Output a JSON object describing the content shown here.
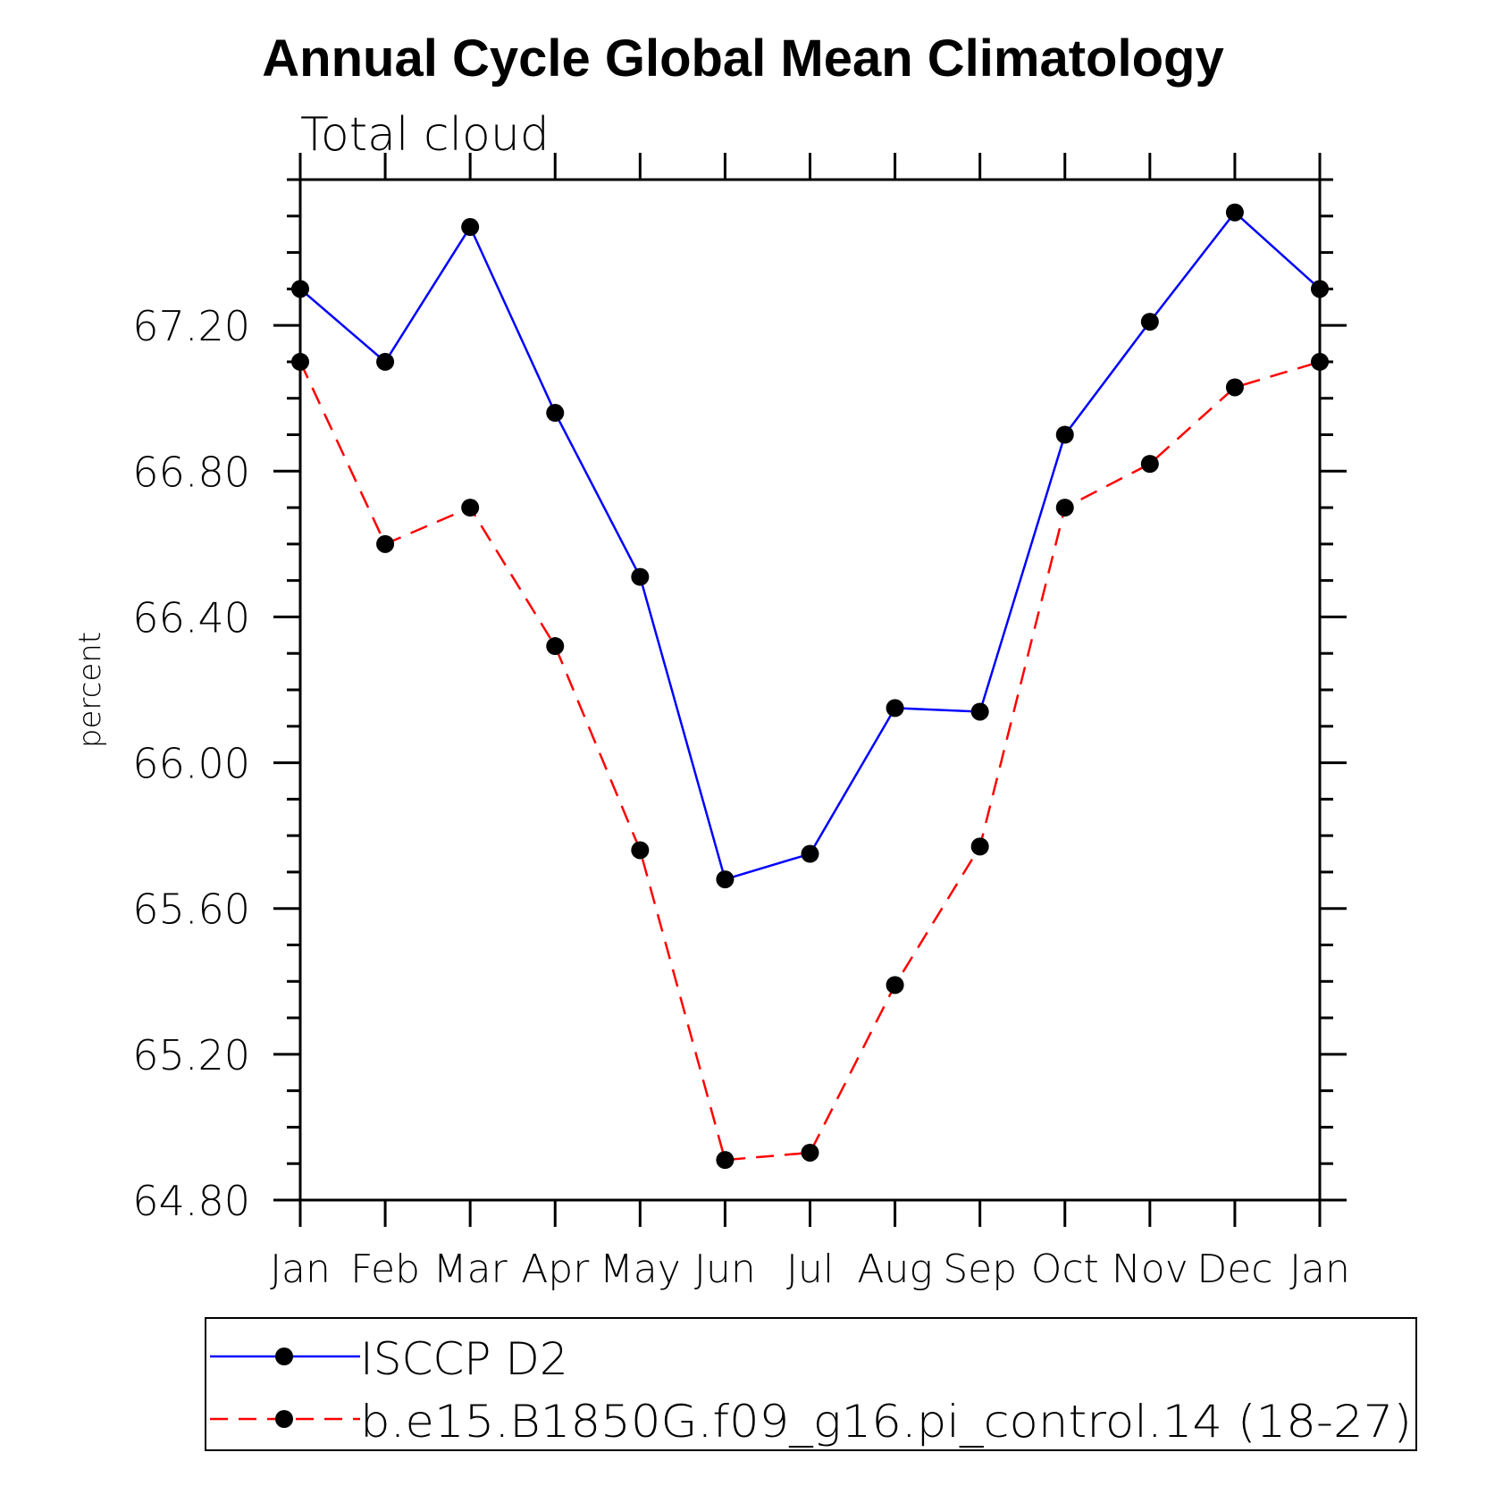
{
  "chart_data": {
    "type": "line",
    "title": "Annual Cycle Global Mean Climatology",
    "subtitle": "Total cloud",
    "xlabel": "",
    "ylabel": "percent",
    "categories": [
      "Jan",
      "Feb",
      "Mar",
      "Apr",
      "May",
      "Jun",
      "Jul",
      "Aug",
      "Sep",
      "Oct",
      "Nov",
      "Dec",
      "Jan"
    ],
    "ylim": [
      64.8,
      67.6
    ],
    "yticks": [
      "64.80",
      "65.20",
      "65.60",
      "66.00",
      "66.40",
      "66.80",
      "67.20"
    ],
    "grid": false,
    "legend_position": "bottom",
    "series": [
      {
        "name": "ISCCP D2",
        "color": "#0000ff",
        "dash": "solid",
        "values": [
          67.3,
          67.1,
          67.47,
          66.96,
          66.51,
          65.68,
          65.75,
          66.15,
          66.14,
          66.9,
          67.21,
          67.51,
          67.3
        ]
      },
      {
        "name": "b.e15.B1850G.f09_g16.pi_control.14 (18-27)",
        "color": "#ff0000",
        "dash": "dashed",
        "values": [
          67.1,
          66.6,
          66.7,
          66.32,
          65.76,
          64.91,
          64.93,
          65.39,
          65.77,
          66.7,
          66.82,
          67.03,
          67.1
        ]
      }
    ]
  }
}
